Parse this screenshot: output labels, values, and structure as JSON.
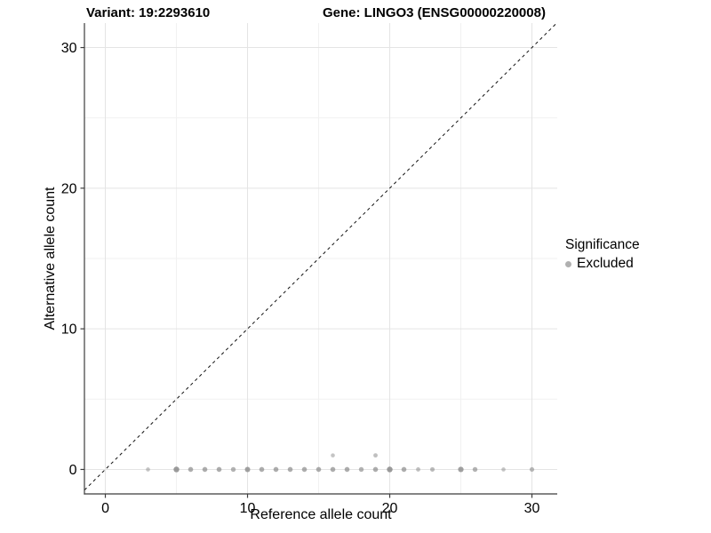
{
  "chart_data": {
    "type": "scatter",
    "title_left": "Variant: 19:2293610",
    "title_right": "Gene: LINGO3 (ENSG00000220008)",
    "xlabel": "Reference allele count",
    "ylabel": "Alternative allele count",
    "xlim": [
      -1.47,
      31.78
    ],
    "ylim": [
      -1.74,
      31.74
    ],
    "xticks": [
      0,
      10,
      20,
      30
    ],
    "yticks": [
      0,
      10,
      20,
      30
    ],
    "minor_xticks": [
      5,
      15,
      25
    ],
    "minor_yticks": [
      5,
      15,
      25
    ],
    "grid": true,
    "identity_line": {
      "style": "dashed",
      "slope": 1,
      "intercept": 0,
      "color": "#111111"
    },
    "legend": {
      "position": "right",
      "title": "Significance",
      "entries": [
        {
          "label": "Excluded",
          "color": "#b0b0b0"
        }
      ]
    },
    "point_color": "#8a8a8a",
    "series": [
      {
        "name": "Excluded",
        "points": [
          {
            "x": 3,
            "y": 0,
            "r": 2.3,
            "alpha": 0.5
          },
          {
            "x": 5,
            "y": 0,
            "r": 3.2,
            "alpha": 0.85
          },
          {
            "x": 6,
            "y": 0,
            "r": 2.8,
            "alpha": 0.7
          },
          {
            "x": 7,
            "y": 0,
            "r": 2.8,
            "alpha": 0.7
          },
          {
            "x": 8,
            "y": 0,
            "r": 2.8,
            "alpha": 0.7
          },
          {
            "x": 9,
            "y": 0,
            "r": 2.7,
            "alpha": 0.65
          },
          {
            "x": 10,
            "y": 0,
            "r": 3.0,
            "alpha": 0.8
          },
          {
            "x": 11,
            "y": 0,
            "r": 2.8,
            "alpha": 0.7
          },
          {
            "x": 12,
            "y": 0,
            "r": 2.8,
            "alpha": 0.7
          },
          {
            "x": 13,
            "y": 0,
            "r": 2.8,
            "alpha": 0.7
          },
          {
            "x": 14,
            "y": 0,
            "r": 2.8,
            "alpha": 0.7
          },
          {
            "x": 15,
            "y": 0,
            "r": 2.8,
            "alpha": 0.7
          },
          {
            "x": 16,
            "y": 0,
            "r": 2.8,
            "alpha": 0.7
          },
          {
            "x": 17,
            "y": 0,
            "r": 2.8,
            "alpha": 0.7
          },
          {
            "x": 18,
            "y": 0,
            "r": 2.7,
            "alpha": 0.65
          },
          {
            "x": 19,
            "y": 0,
            "r": 2.8,
            "alpha": 0.7
          },
          {
            "x": 20,
            "y": 0,
            "r": 3.2,
            "alpha": 0.85
          },
          {
            "x": 21,
            "y": 0,
            "r": 2.8,
            "alpha": 0.7
          },
          {
            "x": 22,
            "y": 0,
            "r": 2.4,
            "alpha": 0.55
          },
          {
            "x": 23,
            "y": 0,
            "r": 2.5,
            "alpha": 0.6
          },
          {
            "x": 25,
            "y": 0,
            "r": 3.1,
            "alpha": 0.8
          },
          {
            "x": 26,
            "y": 0,
            "r": 2.7,
            "alpha": 0.65
          },
          {
            "x": 28,
            "y": 0,
            "r": 2.3,
            "alpha": 0.5
          },
          {
            "x": 30,
            "y": 0,
            "r": 2.6,
            "alpha": 0.6
          },
          {
            "x": 16,
            "y": 1,
            "r": 2.3,
            "alpha": 0.5
          },
          {
            "x": 19,
            "y": 1,
            "r": 2.4,
            "alpha": 0.55
          }
        ]
      }
    ],
    "colors": {
      "grid_major": "#e4e4e4",
      "grid_minor": "#f1f1f1",
      "axis": "#3c3c3c",
      "text": "#000000"
    }
  }
}
